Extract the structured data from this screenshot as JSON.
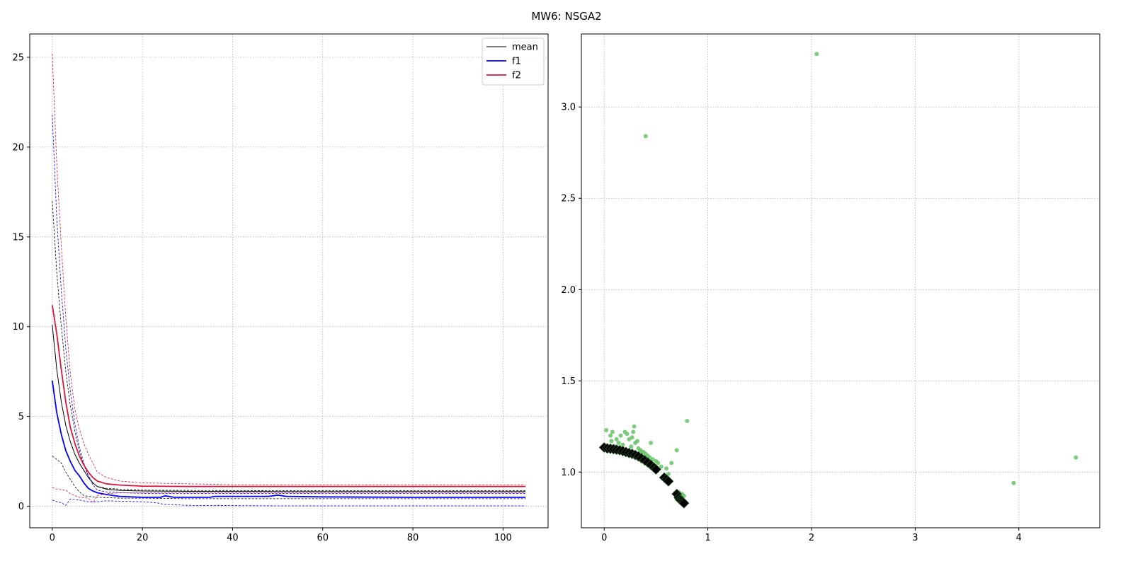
{
  "figure": {
    "title": "MW6: NSGA2"
  },
  "chart_data": [
    {
      "type": "line",
      "title": "",
      "xlabel": "",
      "ylabel": "",
      "xlim": [
        -5,
        110
      ],
      "ylim": [
        -1.2,
        26.3
      ],
      "x_ticks": [
        0,
        20,
        40,
        60,
        80,
        100
      ],
      "y_ticks": [
        0,
        5,
        10,
        15,
        20,
        25
      ],
      "grid": true,
      "legend_position": "top-right",
      "legend": [
        "mean",
        "f1",
        "f2"
      ],
      "series": [
        {
          "name": "mean",
          "color": "#000000",
          "style": "solid",
          "width": 1,
          "points": [
            [
              0,
              10.1
            ],
            [
              1,
              7.6
            ],
            [
              2,
              5.8
            ],
            [
              3,
              4.5
            ],
            [
              4,
              3.6
            ],
            [
              5,
              2.9
            ],
            [
              6,
              2.4
            ],
            [
              7,
              2.0
            ],
            [
              8,
              1.6
            ],
            [
              9,
              1.3
            ],
            [
              10,
              1.1
            ],
            [
              12,
              0.95
            ],
            [
              15,
              0.88
            ],
            [
              20,
              0.85
            ],
            [
              30,
              0.83
            ],
            [
              50,
              0.82
            ],
            [
              80,
              0.82
            ],
            [
              105,
              0.82
            ]
          ]
        },
        {
          "name": "mean max",
          "color": "#000000",
          "style": "dashed",
          "width": 0.8,
          "points": [
            [
              0,
              17.0
            ],
            [
              1,
              13.0
            ],
            [
              2,
              10.0
            ],
            [
              3,
              7.5
            ],
            [
              4,
              5.6
            ],
            [
              5,
              4.2
            ],
            [
              6,
              3.1
            ],
            [
              7,
              2.3
            ],
            [
              8,
              1.7
            ],
            [
              9,
              1.3
            ],
            [
              10,
              1.1
            ],
            [
              12,
              1.0
            ],
            [
              15,
              0.95
            ],
            [
              20,
              0.9
            ],
            [
              30,
              0.88
            ],
            [
              50,
              0.87
            ],
            [
              80,
              0.87
            ],
            [
              105,
              0.87
            ]
          ]
        },
        {
          "name": "mean min",
          "color": "#000000",
          "style": "dashed",
          "width": 0.8,
          "points": [
            [
              0,
              2.8
            ],
            [
              1,
              2.6
            ],
            [
              2,
              2.4
            ],
            [
              3,
              1.9
            ],
            [
              4,
              1.5
            ],
            [
              5,
              1.1
            ],
            [
              6,
              0.8
            ],
            [
              7,
              0.6
            ],
            [
              8,
              0.55
            ],
            [
              10,
              0.5
            ],
            [
              15,
              0.45
            ],
            [
              20,
              0.45
            ],
            [
              30,
              0.42
            ],
            [
              50,
              0.42
            ],
            [
              80,
              0.42
            ],
            [
              105,
              0.42
            ]
          ]
        },
        {
          "name": "f1",
          "color": "#0000ff",
          "style": "solid",
          "width": 1.8,
          "points": [
            [
              0,
              7.0
            ],
            [
              1,
              5.2
            ],
            [
              2,
              4.0
            ],
            [
              3,
              3.1
            ],
            [
              4,
              2.5
            ],
            [
              5,
              2.0
            ],
            [
              6,
              1.7
            ],
            [
              7,
              1.3
            ],
            [
              8,
              1.0
            ],
            [
              9,
              0.85
            ],
            [
              10,
              0.75
            ],
            [
              12,
              0.65
            ],
            [
              15,
              0.55
            ],
            [
              20,
              0.5
            ],
            [
              24,
              0.5
            ],
            [
              25,
              0.58
            ],
            [
              27,
              0.5
            ],
            [
              35,
              0.5
            ],
            [
              36,
              0.55
            ],
            [
              48,
              0.55
            ],
            [
              50,
              0.62
            ],
            [
              52,
              0.55
            ],
            [
              60,
              0.52
            ],
            [
              80,
              0.5
            ],
            [
              105,
              0.5
            ]
          ]
        },
        {
          "name": "f1 max",
          "color": "#0000ff",
          "style": "dashed",
          "width": 0.8,
          "points": [
            [
              0,
              21.8
            ],
            [
              1,
              16.0
            ],
            [
              2,
              12.0
            ],
            [
              3,
              8.8
            ],
            [
              4,
              6.4
            ],
            [
              5,
              4.6
            ],
            [
              6,
              3.3
            ],
            [
              7,
              2.4
            ],
            [
              8,
              1.7
            ],
            [
              9,
              1.2
            ],
            [
              10,
              0.9
            ],
            [
              12,
              0.8
            ],
            [
              15,
              0.75
            ],
            [
              20,
              0.72
            ],
            [
              30,
              0.72
            ],
            [
              50,
              0.72
            ],
            [
              80,
              0.72
            ],
            [
              105,
              0.72
            ]
          ]
        },
        {
          "name": "f1 min",
          "color": "#0000ff",
          "style": "dashed",
          "width": 0.8,
          "points": [
            [
              0,
              0.35
            ],
            [
              1,
              0.25
            ],
            [
              2,
              0.2
            ],
            [
              3,
              0.05
            ],
            [
              4,
              0.4
            ],
            [
              6,
              0.35
            ],
            [
              8,
              0.25
            ],
            [
              10,
              0.25
            ],
            [
              12,
              0.3
            ],
            [
              15,
              0.28
            ],
            [
              20,
              0.25
            ],
            [
              23,
              0.2
            ],
            [
              25,
              0.1
            ],
            [
              30,
              0.05
            ],
            [
              50,
              0.02
            ],
            [
              80,
              0.02
            ],
            [
              105,
              0.02
            ]
          ]
        },
        {
          "name": "f2",
          "color": "#dc143c",
          "style": "solid",
          "width": 1.8,
          "points": [
            [
              0,
              11.2
            ],
            [
              1,
              9.6
            ],
            [
              2,
              7.6
            ],
            [
              3,
              5.8
            ],
            [
              4,
              4.4
            ],
            [
              5,
              3.5
            ],
            [
              6,
              2.8
            ],
            [
              7,
              2.3
            ],
            [
              8,
              1.9
            ],
            [
              9,
              1.6
            ],
            [
              10,
              1.4
            ],
            [
              12,
              1.25
            ],
            [
              15,
              1.18
            ],
            [
              20,
              1.12
            ],
            [
              30,
              1.1
            ],
            [
              40,
              1.1
            ],
            [
              60,
              1.1
            ],
            [
              80,
              1.1
            ],
            [
              105,
              1.1
            ]
          ]
        },
        {
          "name": "f2 max",
          "color": "#dc143c",
          "style": "dashed",
          "width": 0.8,
          "points": [
            [
              0,
              25.2
            ],
            [
              1,
              19.0
            ],
            [
              2,
              14.5
            ],
            [
              3,
              10.5
            ],
            [
              4,
              7.4
            ],
            [
              5,
              5.4
            ],
            [
              6,
              4.3
            ],
            [
              7,
              3.5
            ],
            [
              8,
              2.9
            ],
            [
              9,
              2.4
            ],
            [
              10,
              1.9
            ],
            [
              12,
              1.6
            ],
            [
              15,
              1.4
            ],
            [
              20,
              1.3
            ],
            [
              30,
              1.25
            ],
            [
              40,
              1.2
            ],
            [
              60,
              1.2
            ],
            [
              80,
              1.2
            ],
            [
              105,
              1.2
            ]
          ]
        },
        {
          "name": "f2 min",
          "color": "#dc143c",
          "style": "dashed",
          "width": 0.8,
          "points": [
            [
              0,
              1.05
            ],
            [
              1,
              0.95
            ],
            [
              3,
              0.9
            ],
            [
              4,
              0.7
            ],
            [
              6,
              0.5
            ],
            [
              8,
              0.45
            ],
            [
              9,
              0.2
            ],
            [
              10,
              0.6
            ],
            [
              12,
              0.7
            ],
            [
              15,
              0.75
            ],
            [
              20,
              0.75
            ],
            [
              30,
              0.75
            ],
            [
              50,
              0.75
            ],
            [
              80,
              0.75
            ],
            [
              105,
              0.75
            ]
          ]
        }
      ]
    },
    {
      "type": "scatter",
      "title": "",
      "xlabel": "",
      "ylabel": "",
      "xlim": [
        -0.22,
        4.78
      ],
      "ylim": [
        0.695,
        3.4
      ],
      "x_ticks": [
        0,
        1,
        2,
        3,
        4
      ],
      "y_ticks": [
        1.0,
        1.5,
        2.0,
        2.5,
        3.0
      ],
      "grid": true,
      "series": [
        {
          "name": "population",
          "color": "#66c266",
          "marker": "circle",
          "points": [
            [
              2.05,
              3.29
            ],
            [
              0.4,
              2.84
            ],
            [
              0.8,
              1.28
            ],
            [
              4.55,
              1.08
            ],
            [
              3.95,
              0.94
            ],
            [
              0.02,
              1.23
            ],
            [
              0.06,
              1.2
            ],
            [
              0.07,
              1.17
            ],
            [
              0.08,
              1.22
            ],
            [
              0.12,
              1.18
            ],
            [
              0.14,
              1.16
            ],
            [
              0.16,
              1.2
            ],
            [
              0.18,
              1.15
            ],
            [
              0.2,
              1.22
            ],
            [
              0.22,
              1.21
            ],
            [
              0.24,
              1.18
            ],
            [
              0.27,
              1.19
            ],
            [
              0.28,
              1.22
            ],
            [
              0.29,
              1.25
            ],
            [
              0.3,
              1.16
            ],
            [
              0.32,
              1.17
            ],
            [
              0.33,
              1.13
            ],
            [
              0.35,
              1.12
            ],
            [
              0.38,
              1.11
            ],
            [
              0.4,
              1.1
            ],
            [
              0.42,
              1.09
            ],
            [
              0.45,
              1.16
            ],
            [
              0.47,
              1.07
            ],
            [
              0.5,
              1.06
            ],
            [
              0.52,
              1.05
            ],
            [
              0.55,
              1.03
            ],
            [
              0.6,
              1.02
            ],
            [
              0.62,
              0.99
            ],
            [
              0.65,
              1.05
            ],
            [
              0.7,
              1.12
            ],
            [
              0.72,
              0.89
            ],
            [
              0.75,
              0.88
            ],
            [
              0.77,
              0.87
            ],
            [
              0.1,
              1.14
            ],
            [
              0.26,
              1.14
            ],
            [
              0.36,
              1.11
            ],
            [
              0.44,
              1.08
            ]
          ]
        },
        {
          "name": "front",
          "color": "#000000",
          "marker": "diamond",
          "points": [
            [
              0.0,
              1.135
            ],
            [
              0.03,
              1.13
            ],
            [
              0.06,
              1.128
            ],
            [
              0.09,
              1.126
            ],
            [
              0.12,
              1.123
            ],
            [
              0.15,
              1.12
            ],
            [
              0.18,
              1.115
            ],
            [
              0.21,
              1.11
            ],
            [
              0.24,
              1.105
            ],
            [
              0.27,
              1.1
            ],
            [
              0.3,
              1.094
            ],
            [
              0.33,
              1.086
            ],
            [
              0.36,
              1.076
            ],
            [
              0.39,
              1.065
            ],
            [
              0.42,
              1.053
            ],
            [
              0.45,
              1.04
            ],
            [
              0.48,
              1.025
            ],
            [
              0.5,
              1.015
            ],
            [
              0.58,
              0.97
            ],
            [
              0.6,
              0.96
            ],
            [
              0.62,
              0.95
            ],
            [
              0.7,
              0.88
            ],
            [
              0.72,
              0.86
            ],
            [
              0.73,
              0.85
            ],
            [
              0.74,
              0.845
            ],
            [
              0.75,
              0.84
            ],
            [
              0.76,
              0.835
            ],
            [
              0.77,
              0.83
            ]
          ]
        }
      ]
    }
  ]
}
